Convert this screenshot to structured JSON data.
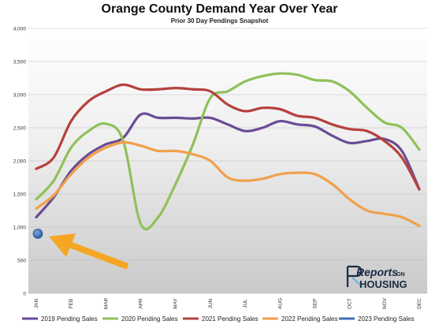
{
  "chart_data": {
    "type": "line",
    "title": "Orange County Demand Year Over Year",
    "subtitle": "Prior 30 Day Pendings Snapshot",
    "xlabel": "",
    "ylabel": "",
    "categories": [
      "JAN",
      "FEB",
      "MAR",
      "APR",
      "MAY",
      "JUN",
      "JUL",
      "AUG",
      "SEP",
      "OCT",
      "NOV",
      "DEC"
    ],
    "y_ticks": [
      "0",
      "500",
      "1,000",
      "1,500",
      "2,000",
      "2,500",
      "3,000",
      "3,500",
      "4,000"
    ],
    "ylim": [
      0,
      4000
    ],
    "grid": true,
    "legend_position": "bottom",
    "series": [
      {
        "name": "2019 Pending Sales",
        "color": "#6a4c93",
        "x": [
          1,
          1.5,
          2,
          2.5,
          3,
          3.5,
          4,
          4.5,
          5,
          5.5,
          6,
          6.5,
          7,
          7.5,
          8,
          8.5,
          9,
          9.5,
          10,
          10.5,
          11,
          11.5,
          12
        ],
        "values": [
          1150,
          1450,
          1850,
          2100,
          2250,
          2350,
          2700,
          2650,
          2650,
          2640,
          2650,
          2550,
          2450,
          2500,
          2600,
          2550,
          2520,
          2380,
          2270,
          2300,
          2330,
          2150,
          1570
        ]
      },
      {
        "name": "2020 Pending Sales",
        "color": "#8fc15a",
        "x": [
          1,
          1.5,
          2,
          2.5,
          3,
          3.5,
          4,
          4.5,
          5,
          5.5,
          6,
          6.5,
          7,
          7.5,
          8,
          8.5,
          9,
          9.5,
          10,
          10.5,
          11,
          11.5,
          12
        ],
        "values": [
          1420,
          1700,
          2200,
          2450,
          2560,
          2300,
          1050,
          1150,
          1650,
          2250,
          2950,
          3050,
          3200,
          3280,
          3320,
          3300,
          3220,
          3200,
          3050,
          2800,
          2580,
          2500,
          2170
        ]
      },
      {
        "name": "2021 Pending Sales",
        "color": "#b5423c",
        "x": [
          1,
          1.5,
          2,
          2.5,
          3,
          3.5,
          4,
          4.5,
          5,
          5.5,
          6,
          6.5,
          7,
          7.5,
          8,
          8.5,
          9,
          9.5,
          10,
          10.5,
          11,
          11.5,
          12
        ],
        "values": [
          1880,
          2050,
          2600,
          2900,
          3050,
          3150,
          3080,
          3080,
          3100,
          3080,
          3050,
          2850,
          2750,
          2800,
          2780,
          2680,
          2650,
          2550,
          2480,
          2450,
          2300,
          2050,
          1570
        ]
      },
      {
        "name": "2022 Pending Sales",
        "color": "#f0a04b",
        "x": [
          1,
          1.5,
          2,
          2.5,
          3,
          3.5,
          4,
          4.5,
          5,
          5.5,
          6,
          6.5,
          7,
          7.5,
          8,
          8.5,
          9,
          9.5,
          10,
          10.5,
          11,
          11.5,
          12
        ],
        "values": [
          1280,
          1480,
          1800,
          2050,
          2200,
          2280,
          2230,
          2150,
          2150,
          2100,
          2000,
          1750,
          1700,
          1730,
          1800,
          1820,
          1800,
          1650,
          1420,
          1250,
          1200,
          1150,
          1020
        ]
      },
      {
        "name": "2023 Pending Sales",
        "color": "#3d6fb5",
        "x": [
          1
        ],
        "values": [
          900
        ]
      }
    ]
  },
  "logo": {
    "line1": "Reports",
    "line1_small": "ON",
    "line2": "HOUSING"
  },
  "annotation": {
    "arrow_color": "#f5a623",
    "arrow_target": "2023 Pending Sales"
  }
}
